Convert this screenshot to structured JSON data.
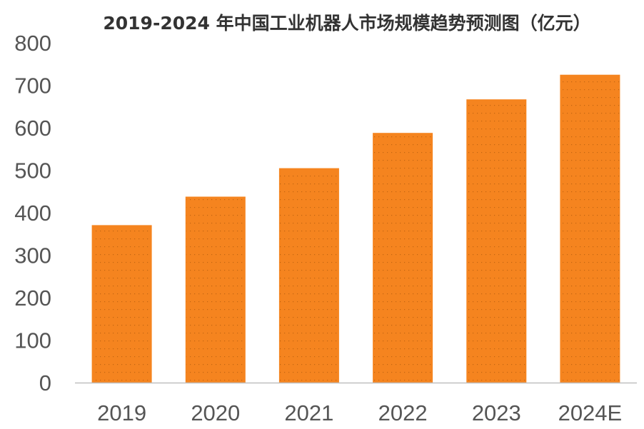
{
  "chart_data": {
    "type": "bar",
    "title": "2019-2024 年中国工业机器人市场规模趋势预测图（亿元）",
    "categories": [
      "2019",
      "2020",
      "2021",
      "2022",
      "2023",
      "2024E"
    ],
    "values": [
      370,
      437,
      504,
      587,
      666,
      724
    ],
    "ylim": [
      0,
      800
    ],
    "yticks": [
      "0",
      "100",
      "200",
      "300",
      "400",
      "500",
      "600",
      "700",
      "800"
    ],
    "xlabel": "",
    "ylabel": "",
    "grid": false,
    "legend": "none",
    "bar_color": "#F5841F",
    "axis_color": "#BFBFBF"
  }
}
